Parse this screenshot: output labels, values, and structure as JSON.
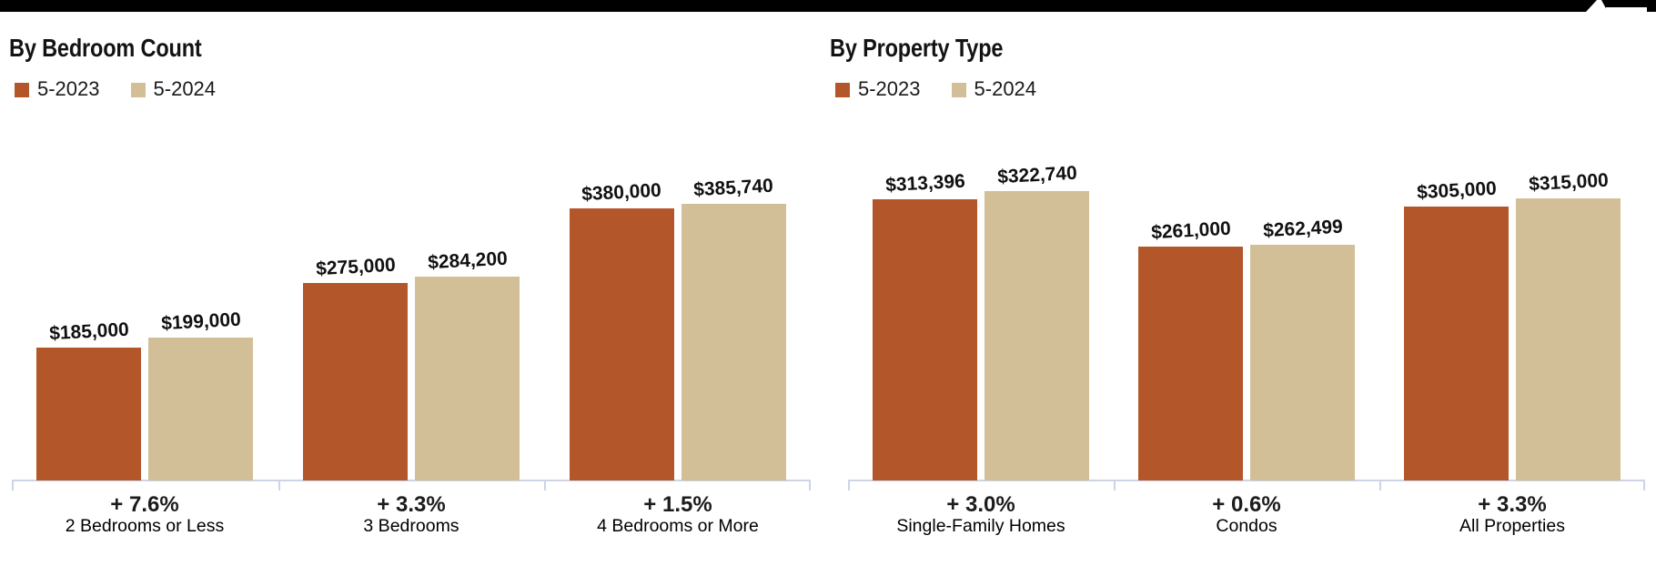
{
  "icons": {
    "top_right": "house-icon"
  },
  "colors": {
    "series_2023": "#b3572a",
    "series_2024": "#d3bf97",
    "axis": "#ccd4e6",
    "top_bar": "#000000",
    "background": "#ffffff",
    "label_text": "#111111"
  },
  "chart_data": [
    {
      "type": "bar",
      "title": "By Bedroom Count",
      "categories": [
        "2 Bedrooms or Less",
        "3 Bedrooms",
        "4 Bedrooms or More"
      ],
      "change_labels": [
        "+ 7.6%",
        "+ 3.3%",
        "+ 1.5%"
      ],
      "series": [
        {
          "name": "5-2023",
          "color": "#b3572a",
          "values": [
            185000,
            275000,
            380000
          ],
          "value_labels": [
            "$185,000",
            "$275,000",
            "$380,000"
          ]
        },
        {
          "name": "5-2024",
          "color": "#d3bf97",
          "values": [
            199000,
            284200,
            385740
          ],
          "value_labels": [
            "$199,000",
            "$284,200",
            "$385,740"
          ]
        }
      ],
      "xlabel": "",
      "ylabel": "",
      "ylim": [
        0,
        385740
      ],
      "grid": false,
      "legend_position": "top-left",
      "axis_style": "baseline-with-category-ticks"
    },
    {
      "type": "bar",
      "title": "By Property Type",
      "categories": [
        "Single-Family Homes",
        "Condos",
        "All Properties"
      ],
      "change_labels": [
        "+ 3.0%",
        "+ 0.6%",
        "+ 3.3%"
      ],
      "series": [
        {
          "name": "5-2023",
          "color": "#b3572a",
          "values": [
            313396,
            261000,
            305000
          ],
          "value_labels": [
            "$313,396",
            "$261,000",
            "$305,000"
          ]
        },
        {
          "name": "5-2024",
          "color": "#d3bf97",
          "values": [
            322740,
            262499,
            315000
          ],
          "value_labels": [
            "$322,740",
            "$262,499",
            "$315,000"
          ]
        }
      ],
      "xlabel": "",
      "ylabel": "",
      "ylim": [
        0,
        322740
      ],
      "grid": false,
      "legend_position": "top-left",
      "axis_style": "baseline-with-category-ticks"
    }
  ]
}
